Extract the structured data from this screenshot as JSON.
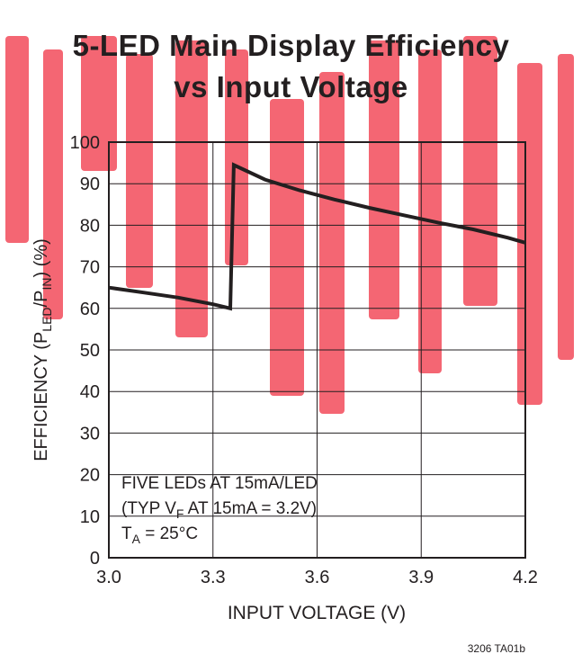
{
  "chart_data": {
    "type": "line",
    "title_lines": [
      "5-LED Main Display Efficiency",
      "vs Input Voltage"
    ],
    "xlabel": "INPUT VOLTAGE (V)",
    "ylabel": {
      "prefix": "EFFICIENCY (P",
      "sub1": "LED",
      "mid": "/P",
      "sub2": "IN",
      "suffix": ") (%)"
    },
    "xlim": [
      3.0,
      4.2
    ],
    "ylim": [
      0,
      100
    ],
    "xticks": [
      3.0,
      3.3,
      3.6,
      3.9,
      4.2
    ],
    "xtick_labels": [
      "3.0",
      "3.3",
      "3.6",
      "3.9",
      "4.2"
    ],
    "yticks": [
      0,
      10,
      20,
      30,
      40,
      50,
      60,
      70,
      80,
      90,
      100
    ],
    "ytick_labels": [
      "0",
      "10",
      "20",
      "30",
      "40",
      "50",
      "60",
      "70",
      "80",
      "90",
      "100"
    ],
    "grid": true,
    "series": [
      {
        "x": [
          3.0,
          3.1,
          3.2,
          3.3,
          3.35,
          3.36,
          3.45,
          3.55,
          3.65,
          3.75,
          3.85,
          3.95,
          4.05,
          4.15,
          4.2
        ],
        "y": [
          65,
          63.8,
          62.6,
          61.0,
          60.0,
          94.5,
          91.0,
          88.4,
          86.2,
          84.2,
          82.4,
          80.6,
          79.0,
          77.0,
          75.8
        ],
        "color": "#231f20"
      }
    ],
    "annotation": {
      "line1": "FIVE LEDs AT 15mA/LED",
      "line2_a": "(TYP V",
      "line2_sub": "F",
      "line2_b": " AT 15mA = 3.2V)",
      "line3_a": "T",
      "line3_sub": "A",
      "line3_b": " = 25°C"
    },
    "footnote": "3206 TA01b"
  },
  "colors": {
    "ink": "#231f20",
    "grid": "#231f20",
    "watermark": "#f24b5a",
    "background": "#ffffff"
  }
}
